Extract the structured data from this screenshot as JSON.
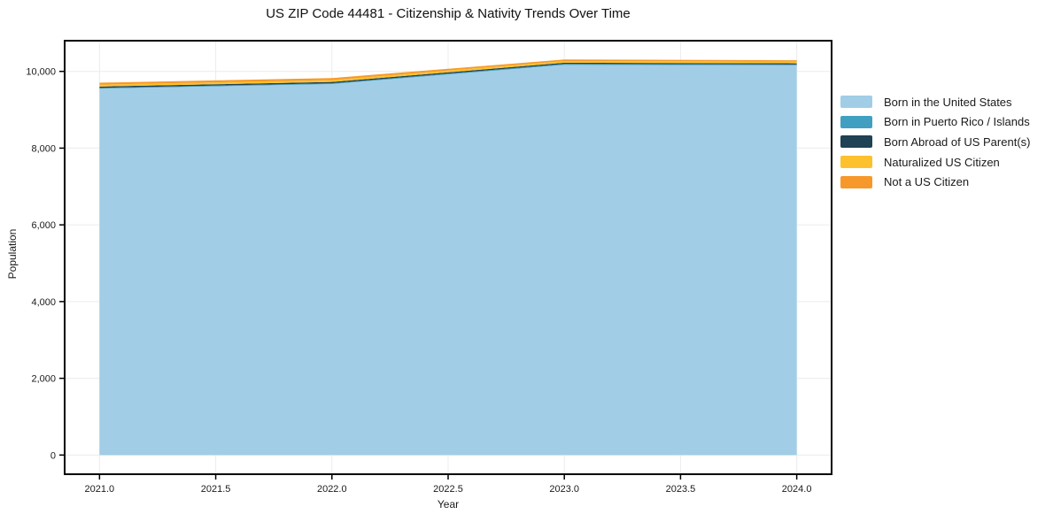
{
  "chart_data": {
    "type": "area",
    "stacked": true,
    "title": "US ZIP Code 44481 - Citizenship & Nativity Trends Over Time",
    "xlabel": "Year",
    "ylabel": "Population",
    "x": [
      2021,
      2022,
      2023,
      2024
    ],
    "series": [
      {
        "name": "Born in the United States",
        "color": "#a1cee6",
        "values": [
          9550,
          9670,
          10170,
          10160
        ]
      },
      {
        "name": "Born in Puerto Rico / Islands",
        "color": "#41a0c2",
        "values": [
          20,
          20,
          25,
          20
        ]
      },
      {
        "name": "Born Abroad of US Parent(s)",
        "color": "#1f4254",
        "values": [
          35,
          35,
          30,
          30
        ]
      },
      {
        "name": "Naturalized US Citizen",
        "color": "#fcc12d",
        "values": [
          50,
          50,
          45,
          45
        ]
      },
      {
        "name": "Not a US Citizen",
        "color": "#f7992a",
        "values": [
          50,
          50,
          40,
          35
        ]
      }
    ],
    "xlim": [
      2020.85,
      2024.15
    ],
    "ylim": [
      -500,
      10800
    ],
    "xticks": [
      2021.0,
      2021.5,
      2022.0,
      2022.5,
      2023.0,
      2023.5,
      2024.0
    ],
    "xtick_labels": [
      "2021.0",
      "2021.5",
      "2022.0",
      "2022.5",
      "2023.0",
      "2023.5",
      "2024.0"
    ],
    "yticks": [
      0,
      2000,
      4000,
      6000,
      8000,
      10000
    ],
    "ytick_labels": [
      "0",
      "2,000",
      "4,000",
      "6,000",
      "8,000",
      "10,000"
    ],
    "grid": true,
    "legend_position": "right-outside",
    "frame_color": "#000000",
    "grid_color": "#ececec"
  }
}
